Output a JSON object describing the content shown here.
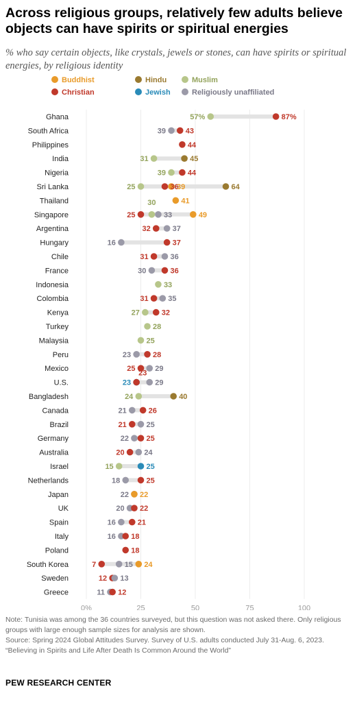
{
  "title": "Across religious groups, relatively few adults believe objects can have spirits or spiritual energies",
  "subtitle": "% who say certain objects, like crystals, jewels or stones, can have spirits or spiritual energies, by religious identity",
  "notes": [
    "Note: Tunisia was among the 36 countries surveyed, but this question was not asked there. Only religious groups with large enough sample sizes for analysis are shown.",
    "Source: Spring 2024 Global Attitudes Survey. Survey of U.S. adults conducted July 31-Aug. 6, 2023.",
    "“Believing in Spirits and Life After Death Is Common Around the World”"
  ],
  "brand": "PEW RESEARCH CENTER",
  "colors": {
    "Buddhist": "#e99b2a",
    "Hindu": "#9a7a30",
    "Muslim": "#b7c68a",
    "Christian": "#c0392b",
    "Jewish": "#2a8bb8",
    "Religiously unaffiliated": "#9b9aa8"
  },
  "chart_data": {
    "type": "scatter",
    "variant": "dot-plot",
    "xlim": [
      0,
      100
    ],
    "xticks": [
      0,
      25,
      50,
      75,
      100
    ],
    "xtick_labels": [
      "0%",
      "25",
      "50",
      "75",
      "100"
    ],
    "legend": [
      "Buddhist",
      "Hindu",
      "Muslim",
      "Christian",
      "Jewish",
      "Religiously unaffiliated"
    ],
    "legend_placement": "top",
    "rows": [
      {
        "country": "Ghana",
        "values": {
          "Muslim": 57,
          "Christian": 87
        },
        "labels": {
          "Muslim": "57%",
          "Christian": "87%"
        }
      },
      {
        "country": "South Africa",
        "values": {
          "Religiously unaffiliated": 39,
          "Christian": 43
        }
      },
      {
        "country": "Philippines",
        "values": {
          "Christian": 44
        }
      },
      {
        "country": "India",
        "values": {
          "Muslim": 31,
          "Hindu": 45
        }
      },
      {
        "country": "Nigeria",
        "values": {
          "Muslim": 39,
          "Christian": 44
        }
      },
      {
        "country": "Sri Lanka",
        "values": {
          "Muslim": 25,
          "Christian": 36,
          "Buddhist": 39,
          "Hindu": 64
        }
      },
      {
        "country": "Thailand",
        "values": {
          "Buddhist": 41
        }
      },
      {
        "country": "Singapore",
        "values": {
          "Christian": 25,
          "Muslim": 30,
          "Religiously unaffiliated": 33,
          "Buddhist": 49
        }
      },
      {
        "country": "Argentina",
        "values": {
          "Christian": 32,
          "Religiously unaffiliated": 37
        }
      },
      {
        "country": "Hungary",
        "values": {
          "Religiously unaffiliated": 16,
          "Christian": 37
        }
      },
      {
        "country": "Chile",
        "values": {
          "Christian": 31,
          "Religiously unaffiliated": 36
        }
      },
      {
        "country": "France",
        "values": {
          "Religiously unaffiliated": 30,
          "Christian": 36
        }
      },
      {
        "country": "Indonesia",
        "values": {
          "Muslim": 33
        }
      },
      {
        "country": "Colombia",
        "values": {
          "Christian": 31,
          "Religiously unaffiliated": 35
        }
      },
      {
        "country": "Kenya",
        "values": {
          "Muslim": 27,
          "Christian": 32
        }
      },
      {
        "country": "Turkey",
        "values": {
          "Muslim": 28
        }
      },
      {
        "country": "Malaysia",
        "values": {
          "Muslim": 25
        }
      },
      {
        "country": "Peru",
        "values": {
          "Religiously unaffiliated": 23,
          "Christian": 28
        }
      },
      {
        "country": "Mexico",
        "values": {
          "Christian": 25,
          "Religiously unaffiliated": 29
        }
      },
      {
        "country": "U.S.",
        "values": {
          "Jewish": 23,
          "Christian": 23,
          "Religiously unaffiliated": 29
        }
      },
      {
        "country": "Bangladesh",
        "values": {
          "Muslim": 24,
          "Hindu": 40
        }
      },
      {
        "country": "Canada",
        "values": {
          "Religiously unaffiliated": 21,
          "Christian": 26
        }
      },
      {
        "country": "Brazil",
        "values": {
          "Christian": 21,
          "Religiously unaffiliated": 25
        }
      },
      {
        "country": "Germany",
        "values": {
          "Religiously unaffiliated": 22,
          "Christian": 25
        }
      },
      {
        "country": "Australia",
        "values": {
          "Christian": 20,
          "Religiously unaffiliated": 24
        }
      },
      {
        "country": "Israel",
        "values": {
          "Muslim": 15,
          "Jewish": 25
        }
      },
      {
        "country": "Netherlands",
        "values": {
          "Religiously unaffiliated": 18,
          "Christian": 25
        }
      },
      {
        "country": "Japan",
        "values": {
          "Religiously unaffiliated": 22,
          "Buddhist": 22
        }
      },
      {
        "country": "UK",
        "values": {
          "Religiously unaffiliated": 20,
          "Christian": 22
        }
      },
      {
        "country": "Spain",
        "values": {
          "Religiously unaffiliated": 16,
          "Christian": 21
        }
      },
      {
        "country": "Italy",
        "values": {
          "Religiously unaffiliated": 16,
          "Christian": 18
        }
      },
      {
        "country": "Poland",
        "values": {
          "Christian": 18
        }
      },
      {
        "country": "South Korea",
        "values": {
          "Christian": 7,
          "Religiously unaffiliated": 15,
          "Buddhist": 24
        }
      },
      {
        "country": "Sweden",
        "values": {
          "Christian": 12,
          "Religiously unaffiliated": 13
        }
      },
      {
        "country": "Greece",
        "values": {
          "Religiously unaffiliated": 11,
          "Christian": 12
        }
      }
    ]
  }
}
